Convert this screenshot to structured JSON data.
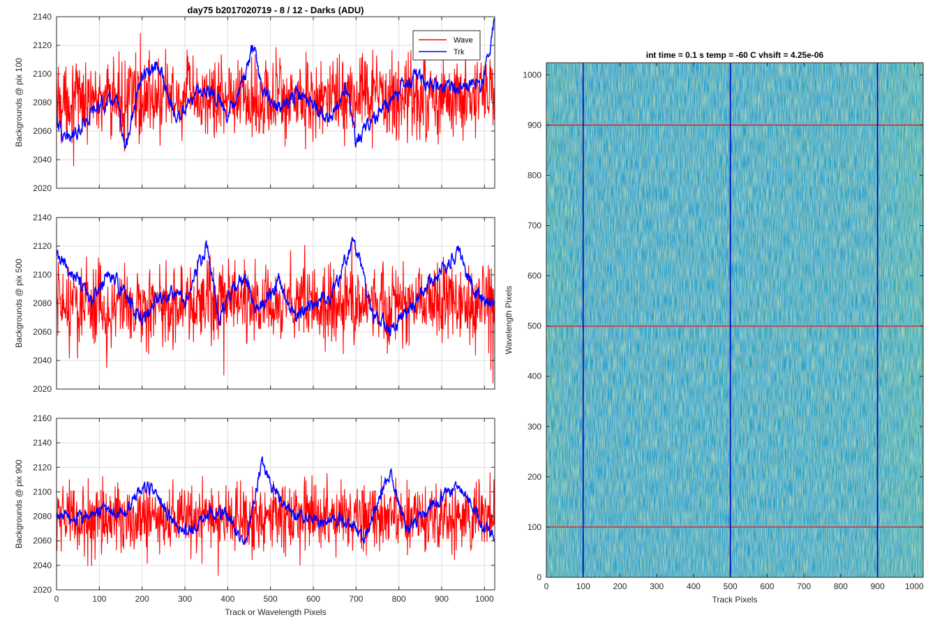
{
  "figure": {
    "title": "day75 b2017020719 - 8 / 12 - Darks (ADU)"
  },
  "chart_data": [
    {
      "type": "line",
      "title": "",
      "xlabel": "",
      "ylabel": "Backgrounds @ pix 100",
      "xlim": [
        0,
        1024
      ],
      "ylim": [
        2020,
        2140
      ],
      "xticks": [
        0,
        100,
        200,
        300,
        400,
        500,
        600,
        700,
        800,
        900,
        1000
      ],
      "yticks": [
        2020,
        2040,
        2060,
        2080,
        2100,
        2120,
        2140
      ],
      "show_xtick_labels": false,
      "grid": true,
      "legend": {
        "placement": "top-right",
        "entries": [
          "Wave",
          "Trk"
        ]
      },
      "series": [
        {
          "name": "Wave",
          "color": "#ff0000",
          "mean": 2082,
          "noise_amplitude": 16,
          "profile": [
            [
              0,
              2082
            ],
            [
              1024,
              2084
            ]
          ]
        },
        {
          "name": "Trk",
          "color": "#0000ff",
          "mean": 2080,
          "noise_amplitude": 4,
          "profile": [
            [
              0,
              2070
            ],
            [
              20,
              2052
            ],
            [
              60,
              2065
            ],
            [
              100,
              2078
            ],
            [
              140,
              2082
            ],
            [
              160,
              2048
            ],
            [
              200,
              2098
            ],
            [
              240,
              2105
            ],
            [
              280,
              2068
            ],
            [
              320,
              2085
            ],
            [
              360,
              2090
            ],
            [
              400,
              2072
            ],
            [
              440,
              2098
            ],
            [
              460,
              2120
            ],
            [
              480,
              2090
            ],
            [
              520,
              2075
            ],
            [
              560,
              2086
            ],
            [
              600,
              2078
            ],
            [
              640,
              2068
            ],
            [
              680,
              2090
            ],
            [
              700,
              2050
            ],
            [
              740,
              2070
            ],
            [
              780,
              2080
            ],
            [
              800,
              2088
            ],
            [
              840,
              2098
            ],
            [
              880,
              2092
            ],
            [
              920,
              2090
            ],
            [
              960,
              2095
            ],
            [
              990,
              2090
            ],
            [
              1010,
              2112
            ],
            [
              1024,
              2138
            ]
          ]
        }
      ]
    },
    {
      "type": "line",
      "title": "",
      "xlabel": "",
      "ylabel": "Backgrounds @ pix 500",
      "xlim": [
        0,
        1024
      ],
      "ylim": [
        2020,
        2140
      ],
      "xticks": [
        0,
        100,
        200,
        300,
        400,
        500,
        600,
        700,
        800,
        900,
        1000
      ],
      "yticks": [
        2020,
        2040,
        2060,
        2080,
        2100,
        2120,
        2140
      ],
      "show_xtick_labels": false,
      "grid": true,
      "series": [
        {
          "name": "Wave",
          "color": "#ff0000",
          "mean": 2078,
          "noise_amplitude": 16,
          "profile": [
            [
              0,
              2078
            ],
            [
              1024,
              2080
            ]
          ]
        },
        {
          "name": "Trk",
          "color": "#0000ff",
          "mean": 2085,
          "noise_amplitude": 4,
          "profile": [
            [
              0,
              2112
            ],
            [
              40,
              2100
            ],
            [
              80,
              2080
            ],
            [
              120,
              2100
            ],
            [
              160,
              2088
            ],
            [
              200,
              2068
            ],
            [
              240,
              2085
            ],
            [
              280,
              2090
            ],
            [
              300,
              2080
            ],
            [
              350,
              2120
            ],
            [
              380,
              2070
            ],
            [
              400,
              2082
            ],
            [
              440,
              2100
            ],
            [
              470,
              2072
            ],
            [
              490,
              2085
            ],
            [
              520,
              2095
            ],
            [
              560,
              2070
            ],
            [
              600,
              2080
            ],
            [
              640,
              2085
            ],
            [
              690,
              2122
            ],
            [
              710,
              2110
            ],
            [
              740,
              2070
            ],
            [
              780,
              2062
            ],
            [
              820,
              2072
            ],
            [
              860,
              2090
            ],
            [
              900,
              2105
            ],
            [
              940,
              2115
            ],
            [
              960,
              2100
            ],
            [
              1000,
              2080
            ],
            [
              1024,
              2078
            ]
          ]
        }
      ]
    },
    {
      "type": "line",
      "title": "",
      "xlabel": "Track or Wavelength Pixels",
      "ylabel": "Backgrounds @ pix 900",
      "xlim": [
        0,
        1024
      ],
      "ylim": [
        2020,
        2160
      ],
      "xticks": [
        0,
        100,
        200,
        300,
        400,
        500,
        600,
        700,
        800,
        900,
        1000
      ],
      "yticks": [
        2020,
        2040,
        2060,
        2080,
        2100,
        2120,
        2140,
        2160
      ],
      "show_xtick_labels": true,
      "grid": true,
      "series": [
        {
          "name": "Wave",
          "color": "#ff0000",
          "mean": 2078,
          "noise_amplitude": 16,
          "profile": [
            [
              0,
              2078
            ],
            [
              1024,
              2080
            ]
          ]
        },
        {
          "name": "Trk",
          "color": "#0000ff",
          "mean": 2082,
          "noise_amplitude": 4,
          "profile": [
            [
              0,
              2080
            ],
            [
              60,
              2078
            ],
            [
              120,
              2088
            ],
            [
              160,
              2082
            ],
            [
              200,
              2105
            ],
            [
              240,
              2095
            ],
            [
              280,
              2070
            ],
            [
              320,
              2070
            ],
            [
              360,
              2085
            ],
            [
              400,
              2080
            ],
            [
              440,
              2058
            ],
            [
              480,
              2125
            ],
            [
              500,
              2105
            ],
            [
              540,
              2085
            ],
            [
              580,
              2080
            ],
            [
              620,
              2075
            ],
            [
              660,
              2078
            ],
            [
              700,
              2070
            ],
            [
              720,
              2060
            ],
            [
              760,
              2100
            ],
            [
              780,
              2115
            ],
            [
              800,
              2090
            ],
            [
              820,
              2070
            ],
            [
              860,
              2082
            ],
            [
              900,
              2095
            ],
            [
              940,
              2105
            ],
            [
              980,
              2085
            ],
            [
              1000,
              2070
            ],
            [
              1024,
              2065
            ]
          ]
        }
      ]
    },
    {
      "type": "heatmap",
      "title": "int time = 0.1 s   temp = -60 C   vhsift = 4.25e-06",
      "xlabel": "Track Pixels",
      "ylabel": "Wavelength Pixels",
      "xlim": [
        0,
        1024
      ],
      "ylim": [
        0,
        1024
      ],
      "xticks": [
        0,
        100,
        200,
        300,
        400,
        500,
        600,
        700,
        800,
        900,
        1000
      ],
      "yticks": [
        0,
        100,
        200,
        300,
        400,
        500,
        600,
        700,
        800,
        900,
        1000
      ],
      "colormap": "parula",
      "base_color": "#1fa2c8",
      "low_color": "#1f78d8",
      "high_color": "#8cc86c",
      "markers": {
        "vertical": {
          "values": [
            100,
            500,
            900
          ],
          "color": "#0000b8"
        },
        "horizontal": {
          "values": [
            100,
            500,
            900
          ],
          "color": "#e0202a"
        }
      }
    }
  ]
}
